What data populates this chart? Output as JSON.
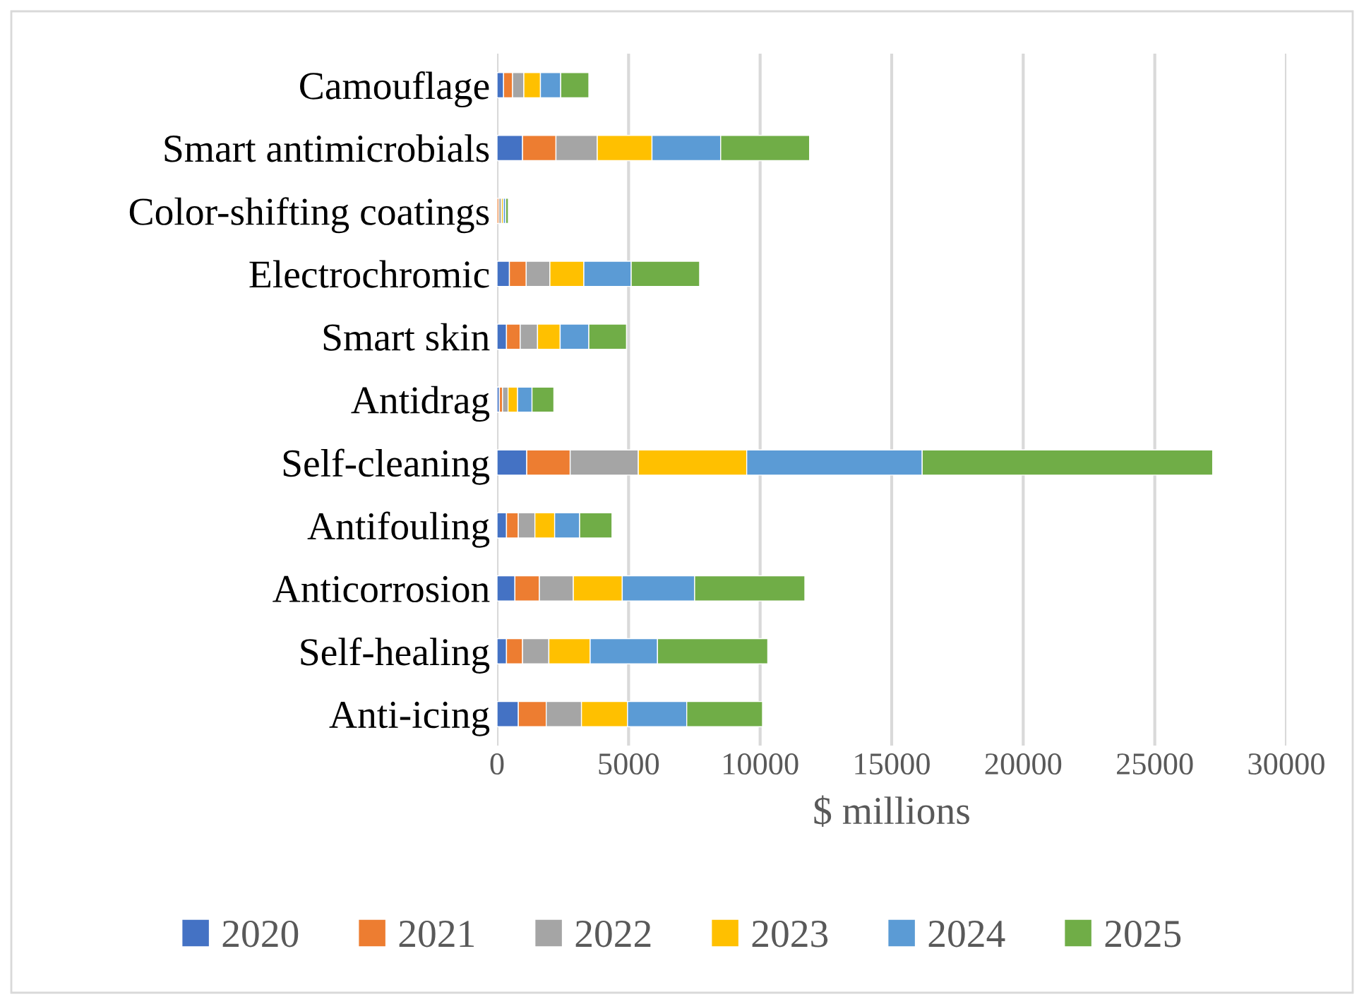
{
  "chart_data": {
    "type": "bar",
    "orientation": "horizontal",
    "stacked": true,
    "categories": [
      "Camouflage",
      "Smart antimicrobials",
      "Color-shifting coatings",
      "Electrochromic",
      "Smart skin",
      "Antidrag",
      "Self-cleaning",
      "Antifouling",
      "Anticorrosion",
      "Self-healing",
      "Anti-icing"
    ],
    "series": [
      {
        "name": "2020",
        "color": "#4472c4",
        "values": [
          250,
          970,
          null,
          470,
          360,
          90,
          1130,
          360,
          680,
          360,
          810
        ]
      },
      {
        "name": "2021",
        "color": "#ed7d31",
        "values": [
          340,
          1270,
          70,
          640,
          520,
          120,
          1650,
          450,
          930,
          610,
          1060
        ]
      },
      {
        "name": "2022",
        "color": "#a5a5a5",
        "values": [
          430,
          1570,
          100,
          900,
          660,
          210,
          2590,
          630,
          1290,
          1000,
          1340
        ]
      },
      {
        "name": "2023",
        "color": "#ffc000",
        "values": [
          630,
          2080,
          70,
          1290,
          860,
          360,
          4120,
          750,
          1860,
          1570,
          1750
        ]
      },
      {
        "name": "2024",
        "color": "#5b9bd5",
        "values": [
          770,
          2610,
          90,
          1800,
          1090,
          550,
          6670,
          950,
          2750,
          2560,
          2250
        ]
      },
      {
        "name": "2025",
        "color": "#70ad47",
        "values": [
          1070,
          3380,
          100,
          2600,
          1430,
          830,
          11040,
          1230,
          4190,
          4190,
          2880
        ]
      }
    ],
    "xlabel": "$ millions",
    "xlim": [
      0,
      30000
    ],
    "xticks": [
      0,
      5000,
      10000,
      15000,
      20000,
      25000,
      30000
    ],
    "grid": "x",
    "legend": "bottom"
  }
}
